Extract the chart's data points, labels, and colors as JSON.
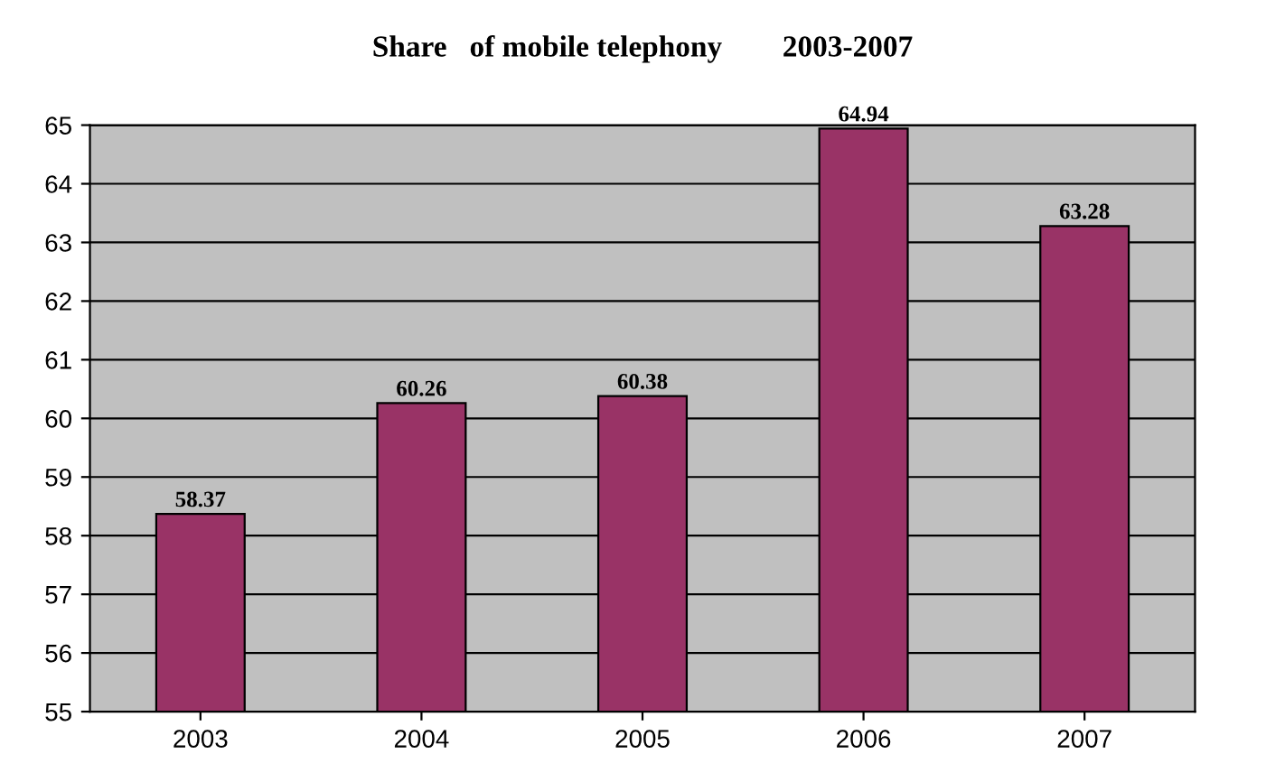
{
  "chart_data": {
    "type": "bar",
    "title": "Share   of mobile telephony        2003-2007",
    "categories": [
      "2003",
      "2004",
      "2005",
      "2006",
      "2007"
    ],
    "values": [
      58.37,
      60.26,
      60.38,
      64.94,
      63.28
    ],
    "color": "#993366",
    "ylim": [
      55,
      65
    ],
    "yticks": [
      55,
      56,
      57,
      58,
      59,
      60,
      61,
      62,
      63,
      64,
      65
    ],
    "grid": "y",
    "data_labels": true,
    "legend": false
  }
}
